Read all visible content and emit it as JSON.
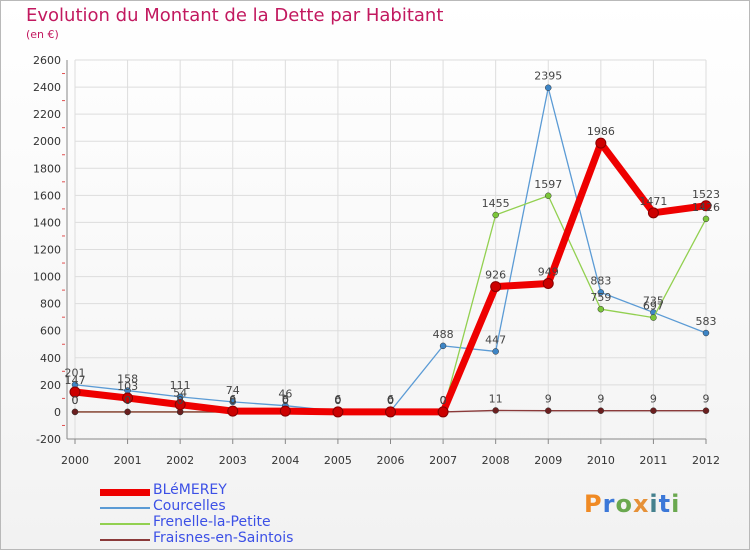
{
  "chart_data": {
    "type": "line",
    "title": "Evolution du Montant de la Dette par Habitant",
    "subtitle": "(en €)",
    "xlabel": "",
    "ylabel": "",
    "ylim": [
      -200,
      2600
    ],
    "yticks": [
      -200,
      0,
      200,
      400,
      600,
      800,
      1000,
      1200,
      1400,
      1600,
      1800,
      2000,
      2200,
      2400,
      2600
    ],
    "categories": [
      "2000",
      "2001",
      "2002",
      "2003",
      "2004",
      "2005",
      "2006",
      "2007",
      "2008",
      "2009",
      "2010",
      "2011",
      "2012"
    ],
    "series": [
      {
        "name": "BLéMEREY",
        "color": "#ee0000",
        "width": 7,
        "values": [
          147,
          103,
          54,
          6,
          6,
          0,
          0,
          0,
          926,
          949,
          1986,
          1471,
          1523
        ]
      },
      {
        "name": "Courcelles",
        "color": "#5b9bd5",
        "point": "#3d85c6",
        "width": 1.3,
        "values": [
          201,
          158,
          111,
          74,
          46,
          6,
          6,
          488,
          447,
          2395,
          883,
          735,
          583
        ]
      },
      {
        "name": "Frenelle-la-Petite",
        "color": "#92d050",
        "point": "#7bc63a",
        "width": 1.3,
        "values": [
          0,
          0,
          0,
          0,
          0,
          0,
          0,
          0,
          1455,
          1597,
          759,
          697,
          1426
        ]
      },
      {
        "name": "Fraisnes-en-Saintois",
        "color": "#8b3a3a",
        "point": "#6b1f1f",
        "width": 1.3,
        "values": [
          0,
          0,
          0,
          0,
          0,
          0,
          0,
          0,
          11,
          9,
          9,
          9,
          9
        ]
      }
    ]
  },
  "logo": {
    "letters": [
      {
        "ch": "P",
        "color": "#f08a24"
      },
      {
        "ch": "r",
        "color": "#3c78d8"
      },
      {
        "ch": "o",
        "color": "#6aa84f"
      },
      {
        "ch": "x",
        "color": "#e69138"
      },
      {
        "ch": "i",
        "color": "#45818e"
      },
      {
        "ch": "t",
        "color": "#3c78d8"
      },
      {
        "ch": "i",
        "color": "#6aa84f"
      }
    ]
  }
}
